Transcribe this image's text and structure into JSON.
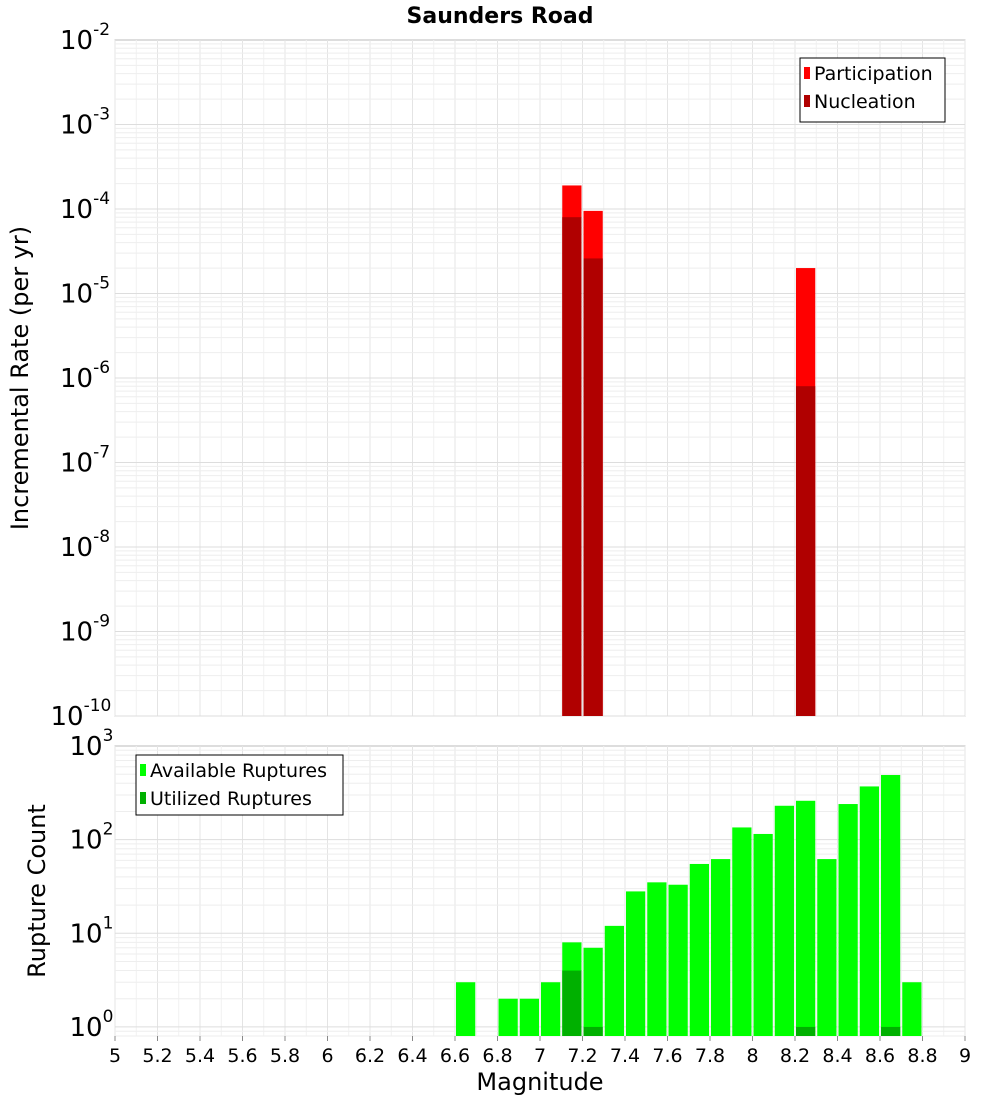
{
  "chart_data": [
    {
      "type": "bar",
      "title": "Saunders Road",
      "ylabel": "Incremental Rate (per yr)",
      "xlabel": "",
      "yscale": "log",
      "ylim": [
        1e-10,
        0.01
      ],
      "xlim": [
        5,
        9
      ],
      "bar_width": 0.1,
      "grid": true,
      "legend_position": "top-right",
      "y_ticks": [
        {
          "base": "10",
          "exp": "-10",
          "value": 1e-10
        },
        {
          "base": "10",
          "exp": "-9",
          "value": 1e-09
        },
        {
          "base": "10",
          "exp": "-8",
          "value": 1e-08
        },
        {
          "base": "10",
          "exp": "-7",
          "value": 1e-07
        },
        {
          "base": "10",
          "exp": "-6",
          "value": 1e-06
        },
        {
          "base": "10",
          "exp": "-5",
          "value": 1e-05
        },
        {
          "base": "10",
          "exp": "-4",
          "value": 0.0001
        },
        {
          "base": "10",
          "exp": "-3",
          "value": 0.001
        },
        {
          "base": "10",
          "exp": "-2",
          "value": 0.01
        }
      ],
      "series": [
        {
          "name": "Participation",
          "color": "#ff0000",
          "points": [
            {
              "x": 7.15,
              "y": 0.00019
            },
            {
              "x": 7.25,
              "y": 9.5e-05
            },
            {
              "x": 8.25,
              "y": 2e-05
            }
          ]
        },
        {
          "name": "Nucleation",
          "color": "#b00000",
          "points": [
            {
              "x": 7.15,
              "y": 8e-05
            },
            {
              "x": 7.25,
              "y": 2.6e-05
            },
            {
              "x": 8.25,
              "y": 8e-07
            }
          ]
        }
      ]
    },
    {
      "type": "bar",
      "title": "",
      "ylabel": "Rupture Count",
      "xlabel": "Magnitude",
      "yscale": "log",
      "ylim": [
        0.8,
        1000
      ],
      "xlim": [
        5,
        9
      ],
      "bar_width": 0.1,
      "grid": true,
      "legend_position": "top-left",
      "y_ticks": [
        {
          "base": "10",
          "exp": "0",
          "value": 1
        },
        {
          "base": "10",
          "exp": "1",
          "value": 10
        },
        {
          "base": "10",
          "exp": "2",
          "value": 100
        },
        {
          "base": "10",
          "exp": "3",
          "value": 1000
        }
      ],
      "x_ticks": [
        "5",
        "5.2",
        "5.4",
        "5.6",
        "5.8",
        "6",
        "6.2",
        "6.4",
        "6.6",
        "6.8",
        "7",
        "7.2",
        "7.4",
        "7.6",
        "7.8",
        "8",
        "8.2",
        "8.4",
        "8.6",
        "8.8",
        "9"
      ],
      "series": [
        {
          "name": "Available Ruptures",
          "color": "#00ff00",
          "points": [
            {
              "x": 6.65,
              "y": 3
            },
            {
              "x": 6.85,
              "y": 2
            },
            {
              "x": 6.95,
              "y": 2
            },
            {
              "x": 7.05,
              "y": 3
            },
            {
              "x": 7.15,
              "y": 8
            },
            {
              "x": 7.25,
              "y": 7
            },
            {
              "x": 7.35,
              "y": 12
            },
            {
              "x": 7.45,
              "y": 28
            },
            {
              "x": 7.55,
              "y": 35
            },
            {
              "x": 7.65,
              "y": 33
            },
            {
              "x": 7.75,
              "y": 55
            },
            {
              "x": 7.85,
              "y": 62
            },
            {
              "x": 7.95,
              "y": 135
            },
            {
              "x": 8.05,
              "y": 115
            },
            {
              "x": 8.15,
              "y": 230
            },
            {
              "x": 8.25,
              "y": 260
            },
            {
              "x": 8.35,
              "y": 62
            },
            {
              "x": 8.45,
              "y": 240
            },
            {
              "x": 8.55,
              "y": 370
            },
            {
              "x": 8.65,
              "y": 490
            },
            {
              "x": 8.75,
              "y": 3
            }
          ]
        },
        {
          "name": "Utilized Ruptures",
          "color": "#00b000",
          "points": [
            {
              "x": 7.15,
              "y": 4
            },
            {
              "x": 7.25,
              "y": 1
            },
            {
              "x": 8.25,
              "y": 1
            },
            {
              "x": 8.65,
              "y": 1
            }
          ]
        }
      ]
    }
  ]
}
